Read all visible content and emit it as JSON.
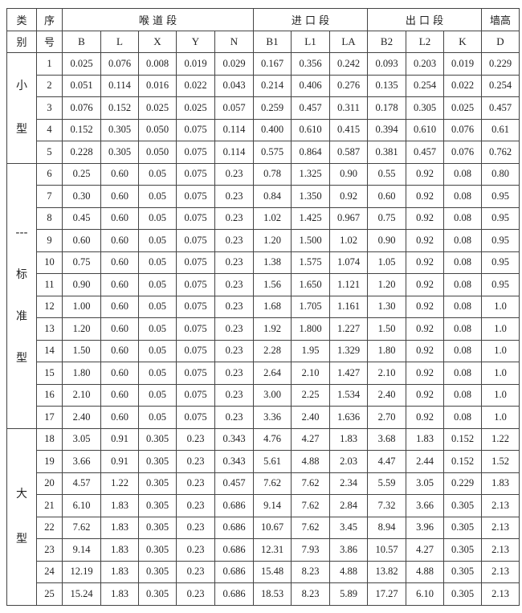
{
  "header": {
    "category": [
      "类",
      "别"
    ],
    "index": [
      "序",
      "号"
    ],
    "groups": [
      "喉 道 段",
      "进 口 段",
      "出 口 段",
      "墙高"
    ],
    "columns": [
      "B",
      "L",
      "X",
      "Y",
      "N",
      "B1",
      "L1",
      "LA",
      "B2",
      "L2",
      "K",
      "D"
    ]
  },
  "categories": [
    {
      "chars": [
        "小",
        "型"
      ],
      "rows": 5
    },
    {
      "chars": [
        "---",
        "标",
        "准",
        "型"
      ],
      "rows": 12
    },
    {
      "chars": [
        "大",
        "型"
      ],
      "rows": 8
    }
  ],
  "rows": [
    [
      "1",
      "0.025",
      "0.076",
      "0.008",
      "0.019",
      "0.029",
      "0.167",
      "0.356",
      "0.242",
      "0.093",
      "0.203",
      "0.019",
      "0.229"
    ],
    [
      "2",
      "0.051",
      "0.114",
      "0.016",
      "0.022",
      "0.043",
      "0.214",
      "0.406",
      "0.276",
      "0.135",
      "0.254",
      "0.022",
      "0.254"
    ],
    [
      "3",
      "0.076",
      "0.152",
      "0.025",
      "0.025",
      "0.057",
      "0.259",
      "0.457",
      "0.311",
      "0.178",
      "0.305",
      "0.025",
      "0.457"
    ],
    [
      "4",
      "0.152",
      "0.305",
      "0.050",
      "0.075",
      "0.114",
      "0.400",
      "0.610",
      "0.415",
      "0.394",
      "0.610",
      "0.076",
      "0.61"
    ],
    [
      "5",
      "0.228",
      "0.305",
      "0.050",
      "0.075",
      "0.114",
      "0.575",
      "0.864",
      "0.587",
      "0.381",
      "0.457",
      "0.076",
      "0.762"
    ],
    [
      "6",
      "0.25",
      "0.60",
      "0.05",
      "0.075",
      "0.23",
      "0.78",
      "1.325",
      "0.90",
      "0.55",
      "0.92",
      "0.08",
      "0.80"
    ],
    [
      "7",
      "0.30",
      "0.60",
      "0.05",
      "0.075",
      "0.23",
      "0.84",
      "1.350",
      "0.92",
      "0.60",
      "0.92",
      "0.08",
      "0.95"
    ],
    [
      "8",
      "0.45",
      "0.60",
      "0.05",
      "0.075",
      "0.23",
      "1.02",
      "1.425",
      "0.967",
      "0.75",
      "0.92",
      "0.08",
      "0.95"
    ],
    [
      "9",
      "0.60",
      "0.60",
      "0.05",
      "0.075",
      "0.23",
      "1.20",
      "1.500",
      "1.02",
      "0.90",
      "0.92",
      "0.08",
      "0.95"
    ],
    [
      "10",
      "0.75",
      "0.60",
      "0.05",
      "0.075",
      "0.23",
      "1.38",
      "1.575",
      "1.074",
      "1.05",
      "0.92",
      "0.08",
      "0.95"
    ],
    [
      "11",
      "0.90",
      "0.60",
      "0.05",
      "0.075",
      "0.23",
      "1.56",
      "1.650",
      "1.121",
      "1.20",
      "0.92",
      "0.08",
      "0.95"
    ],
    [
      "12",
      "1.00",
      "0.60",
      "0.05",
      "0.075",
      "0.23",
      "1.68",
      "1.705",
      "1.161",
      "1.30",
      "0.92",
      "0.08",
      "1.0"
    ],
    [
      "13",
      "1.20",
      "0.60",
      "0.05",
      "0.075",
      "0.23",
      "1.92",
      "1.800",
      "1.227",
      "1.50",
      "0.92",
      "0.08",
      "1.0"
    ],
    [
      "14",
      "1.50",
      "0.60",
      "0.05",
      "0.075",
      "0.23",
      "2.28",
      "1.95",
      "1.329",
      "1.80",
      "0.92",
      "0.08",
      "1.0"
    ],
    [
      "15",
      "1.80",
      "0.60",
      "0.05",
      "0.075",
      "0.23",
      "2.64",
      "2.10",
      "1.427",
      "2.10",
      "0.92",
      "0.08",
      "1.0"
    ],
    [
      "16",
      "2.10",
      "0.60",
      "0.05",
      "0.075",
      "0.23",
      "3.00",
      "2.25",
      "1.534",
      "2.40",
      "0.92",
      "0.08",
      "1.0"
    ],
    [
      "17",
      "2.40",
      "0.60",
      "0.05",
      "0.075",
      "0.23",
      "3.36",
      "2.40",
      "1.636",
      "2.70",
      "0.92",
      "0.08",
      "1.0"
    ],
    [
      "18",
      "3.05",
      "0.91",
      "0.305",
      "0.23",
      "0.343",
      "4.76",
      "4.27",
      "1.83",
      "3.68",
      "1.83",
      "0.152",
      "1.22"
    ],
    [
      "19",
      "3.66",
      "0.91",
      "0.305",
      "0.23",
      "0.343",
      "5.61",
      "4.88",
      "2.03",
      "4.47",
      "2.44",
      "0.152",
      "1.52"
    ],
    [
      "20",
      "4.57",
      "1.22",
      "0.305",
      "0.23",
      "0.457",
      "7.62",
      "7.62",
      "2.34",
      "5.59",
      "3.05",
      "0.229",
      "1.83"
    ],
    [
      "21",
      "6.10",
      "1.83",
      "0.305",
      "0.23",
      "0.686",
      "9.14",
      "7.62",
      "2.84",
      "7.32",
      "3.66",
      "0.305",
      "2.13"
    ],
    [
      "22",
      "7.62",
      "1.83",
      "0.305",
      "0.23",
      "0.686",
      "10.67",
      "7.62",
      "3.45",
      "8.94",
      "3.96",
      "0.305",
      "2.13"
    ],
    [
      "23",
      "9.14",
      "1.83",
      "0.305",
      "0.23",
      "0.686",
      "12.31",
      "7.93",
      "3.86",
      "10.57",
      "4.27",
      "0.305",
      "2.13"
    ],
    [
      "24",
      "12.19",
      "1.83",
      "0.305",
      "0.23",
      "0.686",
      "15.48",
      "8.23",
      "4.88",
      "13.82",
      "4.88",
      "0.305",
      "2.13"
    ],
    [
      "25",
      "15.24",
      "1.83",
      "0.305",
      "0.23",
      "0.686",
      "18.53",
      "8.23",
      "5.89",
      "17.27",
      "6.10",
      "0.305",
      "2.13"
    ]
  ]
}
